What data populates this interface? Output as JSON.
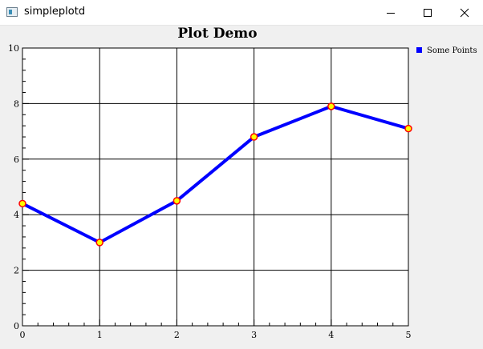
{
  "window": {
    "title": "simpleplotd",
    "controls": {
      "minimize": "minimize-icon",
      "maximize": "maximize-icon",
      "close": "close-icon"
    }
  },
  "chart_data": {
    "type": "line",
    "title": "Plot Demo",
    "xlabel": "",
    "ylabel": "",
    "xlim": [
      0,
      5
    ],
    "ylim": [
      0,
      10
    ],
    "x_ticks": [
      0,
      1,
      2,
      3,
      4,
      5
    ],
    "y_ticks": [
      0,
      2,
      4,
      6,
      8,
      10
    ],
    "grid": true,
    "legend": "top-right",
    "series": [
      {
        "name": "Some Points",
        "color": "#0000ff",
        "marker_face": "#ffff00",
        "marker_edge": "#ff0000",
        "x": [
          0,
          1,
          2,
          3,
          4,
          5
        ],
        "y": [
          4.4,
          3.0,
          4.5,
          6.8,
          7.9,
          7.1
        ]
      }
    ]
  }
}
